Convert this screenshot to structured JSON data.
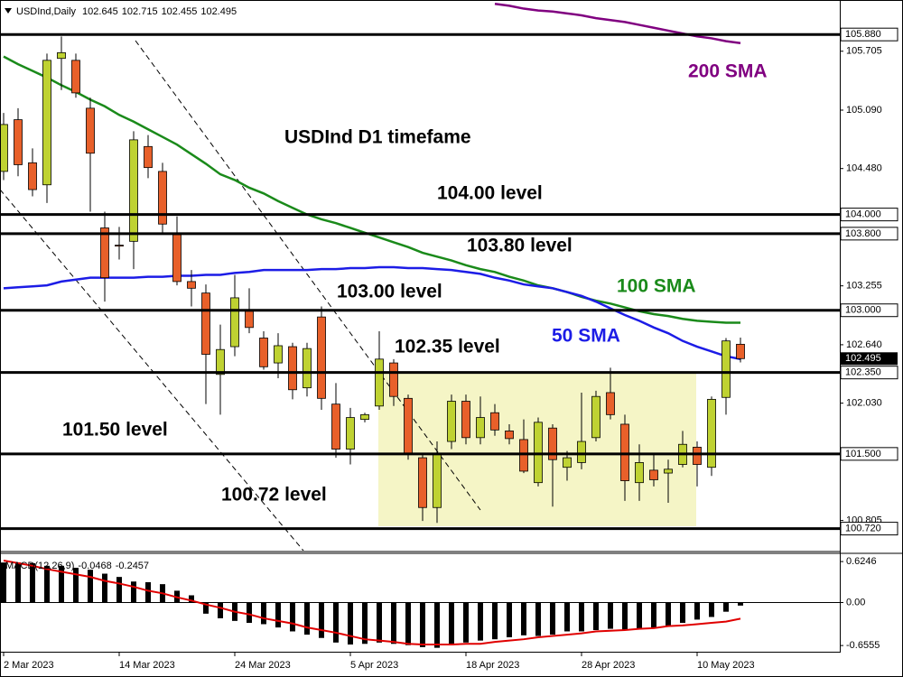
{
  "chart_data": [
    {
      "type": "candlestick",
      "symbol": "USDInd,Daily",
      "categories": [
        "2 Mar 2023",
        null,
        null,
        null,
        null,
        null,
        null,
        null,
        "14 Mar 2023",
        null,
        null,
        null,
        null,
        null,
        null,
        null,
        "24 Mar 2023",
        null,
        null,
        null,
        null,
        null,
        null,
        null,
        "5 Apr 2023",
        null,
        null,
        null,
        null,
        null,
        null,
        null,
        "18 Apr 2023",
        null,
        null,
        null,
        null,
        null,
        null,
        null,
        "28 Apr 2023",
        null,
        null,
        null,
        null,
        null,
        null,
        null,
        "10 May 2023",
        null,
        null,
        null
      ],
      "open": [
        104.45,
        104.99,
        104.54,
        104.31,
        105.63,
        105.61,
        105.11,
        103.86,
        103.68,
        103.72,
        104.71,
        104.45,
        103.79,
        103.3,
        103.18,
        102.33,
        102.62,
        102.99,
        102.71,
        102.45,
        102.62,
        102.19,
        102.93,
        102.02,
        101.55,
        101.86,
        102.0,
        102.45,
        102.08,
        101.46,
        100.94,
        101.63,
        102.05,
        101.67,
        101.93,
        101.74,
        101.65,
        101.2,
        101.77,
        101.36,
        101.41,
        101.67,
        102.14,
        101.81,
        101.2,
        101.33,
        101.3,
        101.39,
        101.57,
        101.36,
        102.09,
        102.645
      ],
      "high": [
        105.06,
        105.11,
        104.69,
        105.68,
        105.86,
        105.68,
        105.22,
        104.03,
        103.87,
        104.87,
        104.83,
        104.54,
        103.98,
        103.42,
        103.27,
        102.85,
        103.37,
        103.23,
        102.78,
        102.76,
        102.66,
        102.66,
        103.04,
        102.24,
        101.98,
        101.93,
        102.78,
        102.49,
        102.12,
        101.5,
        101.63,
        102.12,
        102.12,
        102.1,
        102.02,
        101.81,
        101.86,
        101.88,
        101.81,
        101.53,
        102.14,
        102.16,
        102.4,
        101.91,
        101.6,
        101.49,
        101.44,
        101.74,
        101.63,
        102.1,
        102.71,
        102.715
      ],
      "low": [
        104.36,
        104.4,
        104.19,
        104.12,
        105.3,
        105.22,
        104.03,
        103.09,
        103.53,
        103.43,
        104.38,
        103.81,
        103.26,
        103.04,
        102.02,
        101.91,
        102.52,
        102.76,
        102.38,
        102.29,
        102.07,
        102.1,
        101.96,
        101.46,
        101.39,
        101.83,
        101.96,
        102.0,
        101.44,
        100.8,
        100.78,
        101.55,
        101.6,
        101.6,
        101.69,
        101.6,
        101.3,
        101.16,
        100.95,
        101.22,
        101.34,
        101.63,
        101.86,
        101.01,
        101.01,
        101.16,
        100.99,
        101.36,
        101.16,
        101.27,
        101.91,
        102.455
      ],
      "close": [
        104.94,
        104.52,
        104.26,
        105.61,
        105.69,
        105.27,
        104.64,
        103.34,
        103.67,
        104.78,
        104.49,
        103.9,
        103.3,
        103.23,
        102.54,
        102.59,
        103.13,
        102.82,
        102.41,
        102.63,
        102.17,
        102.6,
        102.08,
        101.55,
        101.88,
        101.91,
        102.49,
        102.1,
        101.5,
        100.94,
        101.5,
        102.05,
        101.67,
        101.88,
        101.75,
        101.66,
        101.32,
        101.83,
        101.44,
        101.46,
        101.63,
        102.1,
        101.91,
        101.22,
        101.41,
        101.23,
        101.34,
        101.6,
        101.39,
        102.07,
        102.68,
        102.495
      ],
      "up_color": "#bfd232",
      "down_color": "#e8602a",
      "series": [
        {
          "name": "200 SMA",
          "color": "#800080",
          "values": [
            null,
            null,
            null,
            null,
            null,
            null,
            null,
            null,
            null,
            null,
            null,
            null,
            null,
            null,
            null,
            null,
            null,
            null,
            null,
            null,
            null,
            null,
            null,
            null,
            null,
            null,
            null,
            null,
            null,
            null,
            null,
            null,
            null,
            null,
            106.2,
            106.18,
            106.15,
            106.13,
            106.12,
            106.1,
            106.08,
            106.05,
            106.03,
            106.01,
            105.98,
            105.95,
            105.92,
            105.89,
            105.86,
            105.84,
            105.81,
            105.79
          ]
        },
        {
          "name": "100 SMA",
          "color": "#1a8a1a",
          "values": [
            105.65,
            105.57,
            105.5,
            105.43,
            105.35,
            105.28,
            105.2,
            105.13,
            105.04,
            104.97,
            104.89,
            104.81,
            104.73,
            104.63,
            104.53,
            104.42,
            104.36,
            104.28,
            104.22,
            104.14,
            104.07,
            104.0,
            103.95,
            103.91,
            103.86,
            103.81,
            103.76,
            103.71,
            103.66,
            103.6,
            103.56,
            103.52,
            103.47,
            103.43,
            103.4,
            103.35,
            103.31,
            103.26,
            103.23,
            103.19,
            103.14,
            103.1,
            103.07,
            103.03,
            102.99,
            102.96,
            102.94,
            102.91,
            102.89,
            102.88,
            102.87,
            102.87
          ]
        },
        {
          "name": "50 SMA",
          "color": "#1c1ce6",
          "values": [
            103.23,
            103.24,
            103.25,
            103.26,
            103.3,
            103.32,
            103.34,
            103.34,
            103.34,
            103.34,
            103.35,
            103.35,
            103.36,
            103.36,
            103.37,
            103.37,
            103.39,
            103.4,
            103.42,
            103.42,
            103.42,
            103.42,
            103.43,
            103.43,
            103.44,
            103.44,
            103.45,
            103.45,
            103.44,
            103.44,
            103.43,
            103.42,
            103.4,
            103.38,
            103.34,
            103.31,
            103.27,
            103.25,
            103.23,
            103.19,
            103.15,
            103.09,
            103.02,
            102.95,
            102.89,
            102.82,
            102.76,
            102.68,
            102.62,
            102.57,
            102.52,
            102.49
          ]
        }
      ],
      "levels": [
        {
          "value": 105.88,
          "label": "105.880"
        },
        {
          "value": 104,
          "label": "104.000"
        },
        {
          "value": 103.8,
          "label": "103.800"
        },
        {
          "value": 103,
          "label": "103.000"
        },
        {
          "value": 102.35,
          "label": "102.350"
        },
        {
          "value": 101.5,
          "label": "101.500"
        },
        {
          "value": 100.72,
          "label": "100.720"
        }
      ],
      "annotations": [
        "USDInd D1 timefame",
        "104.00 level",
        "103.80 level",
        "103.00 level",
        "102.35 level",
        "101.50 level",
        "100.72 level"
      ],
      "ylim": [
        100.49,
        106.24
      ],
      "yticks": [
        105.705,
        {
          "value": 105.09,
          "label": "105.090"
        },
        {
          "value": 104.48,
          "label": "104.480"
        },
        103.255,
        {
          "value": 102.64,
          "label": "102.640"
        },
        {
          "value": 102.03,
          "label": "102.030"
        },
        100.805
      ]
    },
    {
      "type": "macd",
      "label": "MACD(12,26,9)",
      "values": [
        0.61,
        0.61,
        0.6,
        0.56,
        0.56,
        0.53,
        0.5,
        0.44,
        0.39,
        0.32,
        0.31,
        0.28,
        0.18,
        0.11,
        -0.17,
        -0.24,
        -0.28,
        -0.31,
        -0.33,
        -0.38,
        -0.44,
        -0.49,
        -0.54,
        -0.61,
        -0.64,
        -0.63,
        -0.61,
        -0.63,
        -0.65,
        -0.68,
        -0.69,
        -0.65,
        -0.61,
        -0.58,
        -0.56,
        -0.53,
        -0.5,
        -0.51,
        -0.49,
        -0.44,
        -0.44,
        -0.42,
        -0.4,
        -0.42,
        -0.4,
        -0.39,
        -0.35,
        -0.31,
        -0.26,
        -0.22,
        -0.14,
        -0.0468
      ],
      "color": "#000000",
      "signal": {
        "color": "#e00000",
        "values": [
          0.64,
          0.6,
          0.56,
          0.51,
          0.47,
          0.43,
          0.39,
          0.33,
          0.29,
          0.24,
          0.18,
          0.14,
          0.08,
          0.03,
          -0.03,
          -0.08,
          -0.14,
          -0.18,
          -0.24,
          -0.28,
          -0.32,
          -0.38,
          -0.42,
          -0.46,
          -0.51,
          -0.56,
          -0.58,
          -0.6,
          -0.63,
          -0.64,
          -0.64,
          -0.64,
          -0.63,
          -0.63,
          -0.6,
          -0.58,
          -0.56,
          -0.53,
          -0.51,
          -0.49,
          -0.47,
          -0.44,
          -0.43,
          -0.42,
          -0.4,
          -0.39,
          -0.36,
          -0.35,
          -0.33,
          -0.31,
          -0.29,
          -0.2457
        ]
      },
      "ylim": [
        -0.75,
        0.75
      ],
      "yticks": [
        0.6246,
        {
          "value": 0,
          "label": "0.00"
        },
        -0.6555
      ]
    }
  ]
}
